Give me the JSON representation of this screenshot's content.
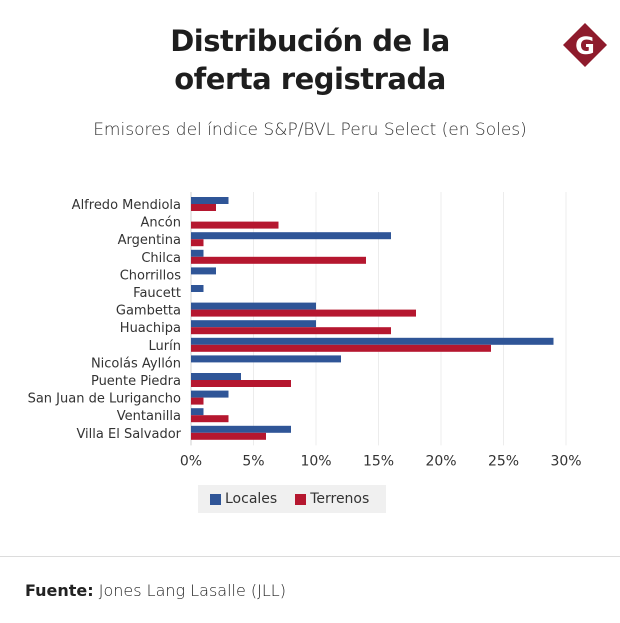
{
  "header": {
    "title_line1": "Distribución de la",
    "title_line2": "oferta registrada",
    "subtitle": "Emisores del índice S&P/BVL Peru Select (en Soles)",
    "logo_letter": "G",
    "logo_color": "#8e1b2c"
  },
  "footer": {
    "source_label": "Fuente:",
    "source_text": " Jones Lang Lasalle (JLL)"
  },
  "chart_data": {
    "type": "bar",
    "orientation": "horizontal",
    "title": "Distribución de la oferta registrada",
    "subtitle": "Emisores del índice S&P/BVL Peru Select (en Soles)",
    "xlabel": "",
    "ylabel": "",
    "xlim": [
      0,
      30
    ],
    "x_ticks": [
      0,
      5,
      10,
      15,
      20,
      25,
      30
    ],
    "x_tick_labels": [
      "0%",
      "5%",
      "10%",
      "15%",
      "20%",
      "25%",
      "30%"
    ],
    "grid": true,
    "legend_position": "bottom",
    "categories": [
      "Alfredo Mendiola",
      "Ancón",
      "Argentina",
      "Chilca",
      "Chorrillos",
      "Faucett",
      "Gambetta",
      "Huachipa",
      "Lurín",
      "Nicolás Ayllón",
      "Puente Piedra",
      "San Juan de Lurigancho",
      "Ventanilla",
      "Villa El Salvador"
    ],
    "series": [
      {
        "name": "Locales",
        "color": "#2f5597",
        "values": [
          3,
          0,
          16,
          1,
          2,
          1,
          10,
          10,
          29,
          12,
          4,
          3,
          1,
          8
        ]
      },
      {
        "name": "Terrenos",
        "color": "#b5172f",
        "values": [
          2,
          7,
          1,
          14,
          0,
          0,
          18,
          16,
          24,
          0,
          8,
          1,
          3,
          6
        ]
      }
    ]
  }
}
